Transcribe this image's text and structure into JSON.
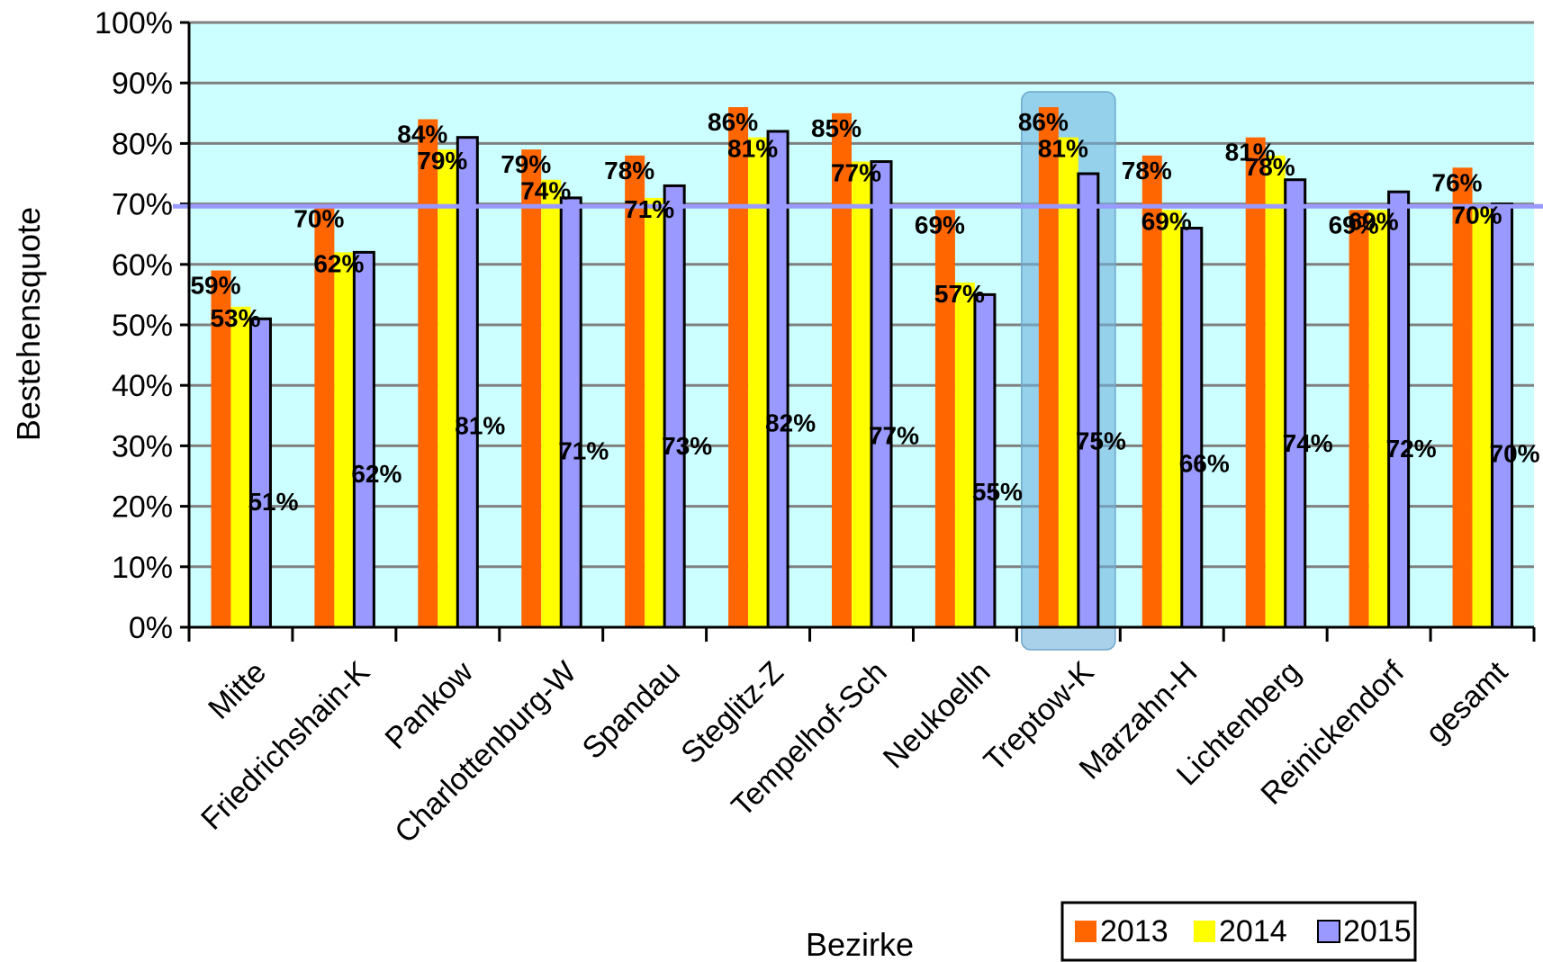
{
  "chart_data": {
    "type": "bar",
    "title": "",
    "xlabel": "Bezirke",
    "ylabel": "Bestehensquote",
    "ylim": [
      0,
      100
    ],
    "yticks": [
      "0%",
      "10%",
      "20%",
      "30%",
      "40%",
      "50%",
      "60%",
      "70%",
      "80%",
      "90%",
      "100%"
    ],
    "categories": [
      "Mitte",
      "Friedrichshain-K",
      "Pankow",
      "Charlottenburg-W",
      "Spandau",
      "Steglitz-Z",
      "Tempelhof-Sch",
      "Neukoelln",
      "Treptow-K",
      "Marzahn-H",
      "Lichtenberg",
      "Reinickendorf",
      "gesamt"
    ],
    "series": [
      {
        "name": "2013",
        "color": "#ff6600",
        "values": [
          59,
          70,
          84,
          79,
          78,
          86,
          85,
          69,
          86,
          78,
          81,
          69,
          76
        ]
      },
      {
        "name": "2014",
        "color": "#ffff00",
        "values": [
          53,
          62,
          79,
          74,
          71,
          81,
          77,
          57,
          81,
          69,
          78,
          69,
          70
        ]
      },
      {
        "name": "2015",
        "color": "#9999ff",
        "values": [
          51,
          62,
          81,
          71,
          73,
          82,
          77,
          55,
          75,
          66,
          74,
          72,
          70
        ]
      }
    ],
    "reference_line": {
      "value": 69.6,
      "color": "#9999ff"
    },
    "highlight_category": "Treptow-K",
    "grid": true,
    "background": "#ccffff",
    "legend_position": "bottom-right"
  }
}
